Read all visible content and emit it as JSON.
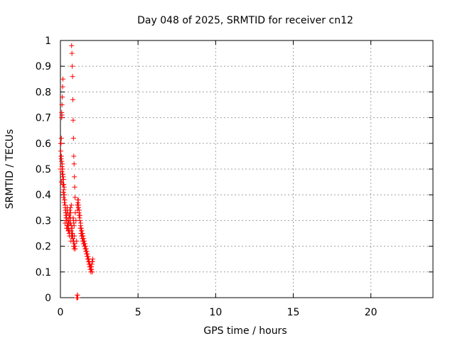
{
  "chart_data": {
    "type": "scatter",
    "title": "Day 048 of 2025, SRMTID for receiver cn12",
    "xlabel": "GPS time / hours",
    "ylabel": "SRMTID / TECUs",
    "xlim": [
      0,
      24
    ],
    "ylim": [
      0,
      1
    ],
    "xticks": [
      "0",
      "5",
      "10",
      "15",
      "20"
    ],
    "yticks": [
      "0",
      "0.1",
      "0.2",
      "0.3",
      "0.4",
      "0.5",
      "0.6",
      "0.7",
      "0.8",
      "0.9",
      "1"
    ],
    "grid": true,
    "marker": "+",
    "color": "#ff0000",
    "series": [
      {
        "name": "SRMTID",
        "x": [
          0.0,
          0.02,
          0.04,
          0.06,
          0.08,
          0.1,
          0.12,
          0.14,
          0.16,
          0.18,
          0.2,
          0.22,
          0.24,
          0.26,
          0.28,
          0.3,
          0.32,
          0.34,
          0.36,
          0.38,
          0.4,
          0.42,
          0.44,
          0.46,
          0.48,
          0.5,
          0.52,
          0.54,
          0.56,
          0.58,
          0.6,
          0.62,
          0.64,
          0.66,
          0.68,
          0.7,
          0.72,
          0.74,
          0.76,
          0.78,
          0.8,
          0.82,
          0.84,
          0.86,
          0.88,
          0.9,
          0.92,
          0.94,
          0.96,
          1.0,
          1.04,
          1.08,
          1.12,
          1.16,
          1.2,
          1.24,
          1.28,
          1.32,
          1.36,
          1.4,
          1.44,
          1.48,
          1.52,
          1.56,
          1.6,
          1.64,
          1.68,
          1.72,
          1.76,
          1.8,
          1.84,
          1.88,
          1.92,
          1.96,
          2.0,
          2.04,
          2.08,
          0.06,
          0.08,
          0.1,
          0.12,
          0.14,
          0.18,
          0.22,
          0.26,
          0.3,
          0.34,
          0.38,
          0.42,
          0.46,
          0.5,
          0.55,
          0.6,
          0.65,
          0.7,
          0.75,
          0.8,
          0.82,
          0.84,
          0.86,
          0.88,
          0.9,
          0.92,
          0.94,
          0.96,
          1.1,
          1.12,
          1.15,
          1.18,
          1.22,
          1.26,
          1.3,
          1.34,
          1.38,
          1.42,
          1.46,
          1.5,
          1.54,
          1.58,
          1.62,
          1.66,
          1.7,
          1.74,
          1.78,
          1.82,
          1.86,
          1.9,
          1.94,
          1.98,
          2.02,
          2.06,
          0.02,
          0.04,
          0.06,
          0.08,
          0.1,
          0.12,
          0.14,
          0.16,
          0.18,
          0.2,
          0.3,
          0.4,
          0.5,
          0.6,
          0.7,
          0.76,
          0.78,
          0.8,
          0.82,
          0.85,
          0.88,
          1.08,
          1.1,
          1.12,
          1.15,
          1.2,
          1.25,
          1.3,
          1.35,
          1.4,
          1.45,
          1.5,
          1.55,
          1.6,
          1.65,
          1.7,
          1.75,
          1.8,
          1.85,
          1.9,
          1.95,
          2.0,
          2.05,
          0.05,
          0.1,
          0.15,
          0.2,
          0.25,
          0.3,
          0.35,
          0.4,
          0.45,
          0.5,
          0.55,
          0.6,
          0.65,
          0.7,
          0.75,
          0.8,
          0.85,
          0.9,
          1.05,
          1.07,
          1.09,
          1.11
        ],
        "y": [
          0.5,
          0.57,
          0.6,
          0.62,
          0.72,
          0.71,
          0.78,
          0.82,
          0.85,
          0.47,
          0.46,
          0.44,
          0.43,
          0.4,
          0.38,
          0.36,
          0.34,
          0.33,
          0.31,
          0.3,
          0.32,
          0.34,
          0.35,
          0.33,
          0.3,
          0.28,
          0.27,
          0.26,
          0.25,
          0.24,
          0.26,
          0.29,
          0.31,
          0.33,
          0.22,
          0.24,
          0.98,
          0.95,
          0.9,
          0.86,
          0.77,
          0.69,
          0.62,
          0.55,
          0.52,
          0.47,
          0.43,
          0.39,
          0.33,
          0.3,
          0.22,
          0.36,
          0.38,
          0.35,
          0.33,
          0.31,
          0.27,
          0.25,
          0.24,
          0.23,
          0.22,
          0.21,
          0.21,
          0.2,
          0.19,
          0.18,
          0.17,
          0.16,
          0.15,
          0.14,
          0.13,
          0.12,
          0.11,
          0.1,
          0.12,
          0.14,
          0.15,
          0.55,
          0.53,
          0.51,
          0.48,
          0.46,
          0.44,
          0.42,
          0.38,
          0.36,
          0.33,
          0.31,
          0.28,
          0.27,
          0.3,
          0.32,
          0.31,
          0.29,
          0.26,
          0.24,
          0.23,
          0.31,
          0.3,
          0.29,
          0.28,
          0.24,
          0.21,
          0.2,
          0.19,
          0.34,
          0.37,
          0.38,
          0.36,
          0.34,
          0.32,
          0.29,
          0.27,
          0.26,
          0.25,
          0.24,
          0.23,
          0.22,
          0.21,
          0.2,
          0.19,
          0.18,
          0.17,
          0.16,
          0.15,
          0.14,
          0.13,
          0.12,
          0.11,
          0.13,
          0.14,
          0.6,
          0.55,
          0.45,
          0.7,
          0.75,
          0.52,
          0.5,
          0.48,
          0.41,
          0.39,
          0.29,
          0.27,
          0.3,
          0.34,
          0.36,
          0.27,
          0.25,
          0.23,
          0.22,
          0.2,
          0.19,
          0.0,
          0.01,
          0.0,
          0.35,
          0.32,
          0.3,
          0.28,
          0.26,
          0.24,
          0.22,
          0.21,
          0.2,
          0.19,
          0.18,
          0.17,
          0.16,
          0.15,
          0.14,
          0.13,
          0.12,
          0.11,
          0.1,
          0.54,
          0.49,
          0.44,
          0.41,
          0.37,
          0.35,
          0.32,
          0.3,
          0.28,
          0.26,
          0.29,
          0.33,
          0.35,
          0.28,
          0.25,
          0.24,
          0.22,
          0.2,
          0.0,
          0.0,
          0.01,
          0.0
        ]
      }
    ]
  }
}
